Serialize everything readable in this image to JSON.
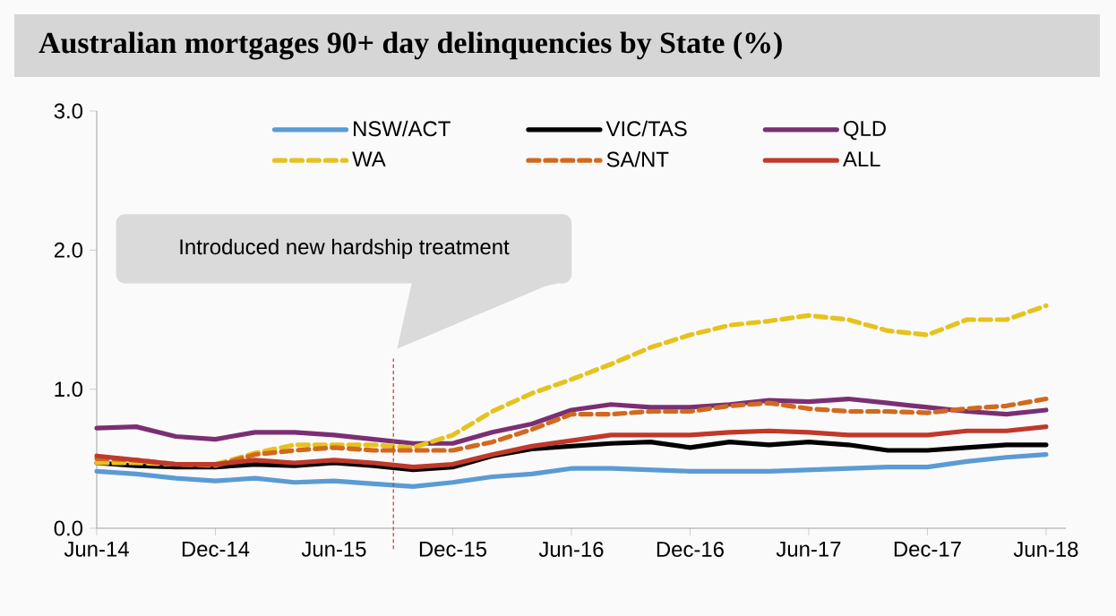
{
  "chart_data": {
    "type": "line",
    "title": "Australian mortgages 90+ day delinquencies by State (%)",
    "x": [
      "2014-06",
      "2014-08",
      "2014-10",
      "2014-12",
      "2015-02",
      "2015-04",
      "2015-06",
      "2015-08",
      "2015-10",
      "2015-12",
      "2016-02",
      "2016-04",
      "2016-06",
      "2016-08",
      "2016-10",
      "2016-12",
      "2017-02",
      "2017-04",
      "2017-06",
      "2017-08",
      "2017-10",
      "2017-12",
      "2018-02",
      "2018-04",
      "2018-06"
    ],
    "series": [
      {
        "name": "NSW/ACT",
        "color": "#5b9bd5",
        "values": [
          0.41,
          0.39,
          0.36,
          0.34,
          0.36,
          0.33,
          0.34,
          0.32,
          0.3,
          0.33,
          0.37,
          0.39,
          0.43,
          0.43,
          0.42,
          0.41,
          0.41,
          0.41,
          0.42,
          0.43,
          0.44,
          0.44,
          0.48,
          0.51,
          0.53
        ]
      },
      {
        "name": "VIC/TAS",
        "color": "#000000",
        "values": [
          0.47,
          0.45,
          0.44,
          0.44,
          0.46,
          0.45,
          0.47,
          0.45,
          0.42,
          0.44,
          0.52,
          0.57,
          0.59,
          0.61,
          0.62,
          0.58,
          0.62,
          0.6,
          0.62,
          0.6,
          0.56,
          0.56,
          0.58,
          0.6,
          0.6
        ]
      },
      {
        "name": "QLD",
        "color": "#7b2f73",
        "values": [
          0.72,
          0.73,
          0.66,
          0.64,
          0.69,
          0.69,
          0.67,
          0.64,
          0.61,
          0.61,
          0.69,
          0.75,
          0.85,
          0.89,
          0.87,
          0.87,
          0.89,
          0.92,
          0.91,
          0.93,
          0.9,
          0.87,
          0.84,
          0.82,
          0.85
        ]
      },
      {
        "name": "WA",
        "color": "#e6c21f",
        "line_style": "dashed",
        "values": [
          0.47,
          0.47,
          0.46,
          0.46,
          0.54,
          0.6,
          0.6,
          0.6,
          0.58,
          0.67,
          0.84,
          0.97,
          1.07,
          1.18,
          1.3,
          1.39,
          1.46,
          1.49,
          1.53,
          1.5,
          1.42,
          1.39,
          1.5,
          1.5,
          1.6
        ]
      },
      {
        "name": "SA/NT",
        "color": "#d2691e",
        "line_style": "dashed",
        "values": [
          0.5,
          0.49,
          0.46,
          0.45,
          0.53,
          0.56,
          0.58,
          0.56,
          0.56,
          0.56,
          0.62,
          0.71,
          0.82,
          0.82,
          0.84,
          0.84,
          0.88,
          0.9,
          0.86,
          0.84,
          0.84,
          0.83,
          0.86,
          0.88,
          0.93
        ]
      },
      {
        "name": "ALL",
        "color": "#c0392b",
        "values": [
          0.52,
          0.49,
          0.46,
          0.46,
          0.49,
          0.47,
          0.49,
          0.47,
          0.44,
          0.46,
          0.53,
          0.59,
          0.63,
          0.67,
          0.67,
          0.67,
          0.69,
          0.7,
          0.69,
          0.67,
          0.67,
          0.67,
          0.7,
          0.7,
          0.73
        ]
      }
    ],
    "xlim": [
      "2014-06",
      "2018-07"
    ],
    "xticks": [
      {
        "value": "2014-06",
        "label": "Jun-14"
      },
      {
        "value": "2014-12",
        "label": "Dec-14"
      },
      {
        "value": "2015-06",
        "label": "Jun-15"
      },
      {
        "value": "2015-12",
        "label": "Dec-15"
      },
      {
        "value": "2016-06",
        "label": "Jun-16"
      },
      {
        "value": "2016-12",
        "label": "Dec-16"
      },
      {
        "value": "2017-06",
        "label": "Jun-17"
      },
      {
        "value": "2017-12",
        "label": "Dec-17"
      },
      {
        "value": "2018-06",
        "label": "Jun-18"
      }
    ],
    "ylim": [
      0,
      3
    ],
    "yticks": [
      {
        "value": 0,
        "label": "0.0"
      },
      {
        "value": 1,
        "label": "1.0"
      },
      {
        "value": 2,
        "label": "2.0"
      },
      {
        "value": 3,
        "label": "3.0"
      }
    ],
    "ref_lines": [
      {
        "axis": "x",
        "value": "2015-09",
        "color": "#c0392b",
        "line_style": "dashed"
      }
    ],
    "annotations": [
      "Introduced new hardship treatment"
    ],
    "legend": "top"
  }
}
